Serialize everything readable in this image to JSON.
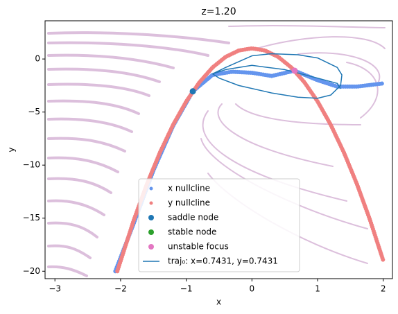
{
  "chart_data": {
    "type": "phase",
    "title": "z=1.20",
    "xlabel": "x",
    "ylabel": "y",
    "xlim": [
      -3.15,
      2.14
    ],
    "ylim": [
      -20.7,
      3.6
    ],
    "xticks": [
      {
        "value": -3,
        "label": "−3"
      },
      {
        "value": -2,
        "label": "−2"
      },
      {
        "value": -1,
        "label": "−1"
      },
      0,
      1,
      2
    ],
    "yticks": [
      0,
      {
        "value": -5,
        "label": "−5"
      },
      {
        "value": -10,
        "label": "−10"
      },
      {
        "value": -15,
        "label": "−15"
      },
      {
        "value": -20,
        "label": "−20"
      }
    ],
    "nullclines": [
      {
        "name": "x nullcline",
        "color": "#6495ed",
        "x": [
          -2.08,
          -1.8,
          -1.5,
          -1.2,
          -0.9,
          -0.6,
          -0.3,
          0,
          0.3,
          0.65,
          1.0,
          1.3,
          1.6,
          2.0
        ],
        "y": [
          -20,
          -15.5,
          -10.5,
          -6.3,
          -3.05,
          -1.5,
          -1.2,
          -1.3,
          -1.6,
          -1.1,
          -2.0,
          -2.6,
          -2.6,
          -2.3
        ]
      },
      {
        "name": "y nullcline",
        "color": "#f08080",
        "x": [
          -2.05,
          -1.8,
          -1.6,
          -1.4,
          -1.2,
          -1,
          -0.8,
          -0.6,
          -0.4,
          -0.2,
          0,
          0.2,
          0.4,
          0.6,
          0.8,
          1,
          1.2,
          1.4,
          1.6,
          1.8,
          2.0
        ],
        "y": [
          -20,
          -15.2,
          -11.8,
          -8.8,
          -6.2,
          -4,
          -2.2,
          -0.8,
          0.2,
          0.8,
          1,
          0.8,
          0.2,
          -0.8,
          -2.2,
          -4,
          -6.2,
          -8.8,
          -11.8,
          -15.2,
          -19
        ]
      }
    ],
    "points": [
      {
        "name": "saddle node",
        "color": "#1f77b4",
        "x": [
          -0.9
        ],
        "y": [
          -3.05
        ]
      },
      {
        "name": "stable node",
        "color": "#2ca02c",
        "x": [],
        "y": []
      },
      {
        "name": "unstable focus",
        "color": "#e377c2",
        "x": [
          0.65
        ],
        "y": [
          -1.1
        ]
      }
    ],
    "trajectory": {
      "name": "traj₀: x=0.7431, y=0.7431",
      "color": "#1f77b4",
      "x": [
        -0.6,
        -0.4,
        0,
        0.3,
        0.7,
        1.0,
        1.3,
        1.37,
        1.35,
        1.2,
        1.0,
        0.7,
        0.3,
        -0.2,
        -0.5,
        -0.6,
        -0.4,
        0,
        0.5,
        1.0,
        1.3,
        1.35
      ],
      "y": [
        -1.4,
        -0.8,
        0.3,
        0.5,
        0.4,
        0.1,
        -0.8,
        -1.5,
        -2.5,
        -3.4,
        -3.7,
        -3.6,
        -3.2,
        -2.5,
        -1.8,
        -1.4,
        -1.0,
        -0.6,
        -1.0,
        -1.8,
        -2.3,
        -2.8
      ]
    }
  }
}
